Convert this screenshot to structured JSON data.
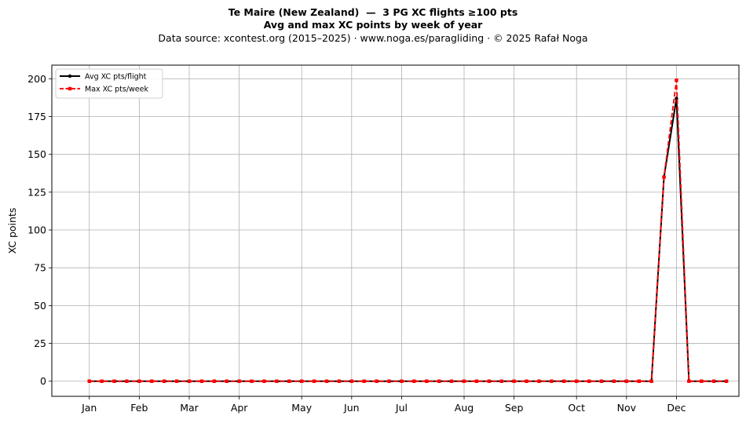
{
  "chart_data": {
    "type": "line",
    "title": "Te Maire (New Zealand)  —  3 PG XC flights ≥100 pts",
    "subtitle": "Avg and max XC points by week of year",
    "source_line": "Data source: xcontest.org (2015–2025)  ·  www.noga.es/paragliding  ·  © 2025 Rafał Noga",
    "xlabel": "",
    "ylabel": "XC points",
    "xlim": [
      -2,
      53
    ],
    "ylim": [
      -10,
      209
    ],
    "yticks": [
      0,
      25,
      50,
      75,
      100,
      125,
      150,
      175,
      200
    ],
    "xticks": [
      {
        "label": "Jan",
        "week": 1
      },
      {
        "label": "Feb",
        "week": 5
      },
      {
        "label": "Mar",
        "week": 9
      },
      {
        "label": "Apr",
        "week": 13
      },
      {
        "label": "May",
        "week": 18
      },
      {
        "label": "Jun",
        "week": 22
      },
      {
        "label": "Jul",
        "week": 26
      },
      {
        "label": "Aug",
        "week": 31
      },
      {
        "label": "Sep",
        "week": 35
      },
      {
        "label": "Oct",
        "week": 40
      },
      {
        "label": "Nov",
        "week": 44
      },
      {
        "label": "Dec",
        "week": 48
      }
    ],
    "grid": true,
    "legend_position": "top-left",
    "series": [
      {
        "name": "Avg XC pts/flight",
        "color": "#000000",
        "style": "solid",
        "marker": "circle",
        "x": [
          1,
          2,
          3,
          4,
          5,
          6,
          7,
          8,
          9,
          10,
          11,
          12,
          13,
          14,
          15,
          16,
          17,
          18,
          19,
          20,
          21,
          22,
          23,
          24,
          25,
          26,
          27,
          28,
          29,
          30,
          31,
          32,
          33,
          34,
          35,
          36,
          37,
          38,
          39,
          40,
          41,
          42,
          43,
          44,
          45,
          46,
          47,
          48,
          49,
          50,
          51,
          52
        ],
        "values": [
          0,
          0,
          0,
          0,
          0,
          0,
          0,
          0,
          0,
          0,
          0,
          0,
          0,
          0,
          0,
          0,
          0,
          0,
          0,
          0,
          0,
          0,
          0,
          0,
          0,
          0,
          0,
          0,
          0,
          0,
          0,
          0,
          0,
          0,
          0,
          0,
          0,
          0,
          0,
          0,
          0,
          0,
          0,
          0,
          0,
          0,
          135,
          187,
          0,
          0,
          0,
          0
        ]
      },
      {
        "name": "Max XC pts/week",
        "color": "#ff0000",
        "style": "dashed",
        "marker": "square",
        "x": [
          1,
          2,
          3,
          4,
          5,
          6,
          7,
          8,
          9,
          10,
          11,
          12,
          13,
          14,
          15,
          16,
          17,
          18,
          19,
          20,
          21,
          22,
          23,
          24,
          25,
          26,
          27,
          28,
          29,
          30,
          31,
          32,
          33,
          34,
          35,
          36,
          37,
          38,
          39,
          40,
          41,
          42,
          43,
          44,
          45,
          46,
          47,
          48,
          49,
          50,
          51,
          52
        ],
        "values": [
          0,
          0,
          0,
          0,
          0,
          0,
          0,
          0,
          0,
          0,
          0,
          0,
          0,
          0,
          0,
          0,
          0,
          0,
          0,
          0,
          0,
          0,
          0,
          0,
          0,
          0,
          0,
          0,
          0,
          0,
          0,
          0,
          0,
          0,
          0,
          0,
          0,
          0,
          0,
          0,
          0,
          0,
          0,
          0,
          0,
          0,
          135,
          199,
          0,
          0,
          0,
          0
        ]
      }
    ]
  }
}
